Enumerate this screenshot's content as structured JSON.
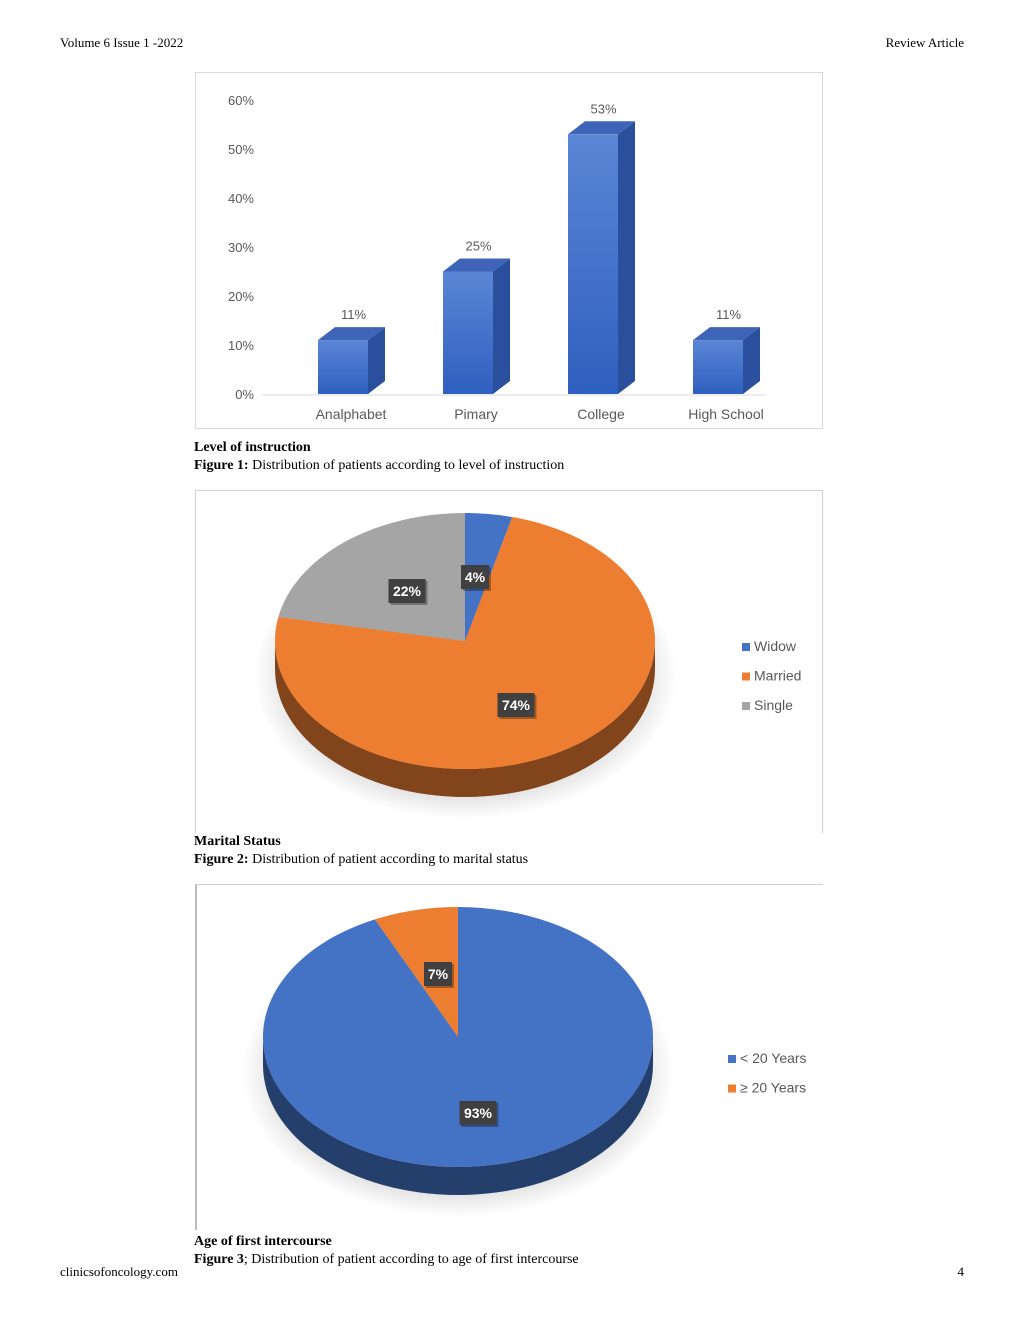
{
  "header": {
    "left": "Volume 6 Issue 1 -2022",
    "right": "Review Article"
  },
  "footer": {
    "left": "clinicsofoncology.com",
    "page": "4"
  },
  "figures": [
    {
      "title": "Level of instruction",
      "label": "Figure 1:",
      "caption": " Distribution of patients according to level of instruction"
    },
    {
      "title": "Marital Status",
      "label": "Figure 2:",
      "caption": " Distribution of patient according to marital status"
    },
    {
      "title": "Age of first intercourse",
      "label": "Figure 3",
      "caption": "; Distribution of patient according to age of first intercourse"
    }
  ],
  "chart_data": [
    {
      "type": "bar",
      "categories": [
        "Analphabet",
        "Pimary",
        "College",
        "High School"
      ],
      "values": [
        11,
        25,
        53,
        11
      ],
      "data_labels": [
        "11%",
        "25%",
        "53%",
        "11%"
      ],
      "yticks": [
        "0%",
        "10%",
        "20%",
        "30%",
        "40%",
        "50%",
        "60%"
      ],
      "ylim": [
        0,
        60
      ],
      "grid": false,
      "color": "#4472c4"
    },
    {
      "type": "pie",
      "labels": [
        "Widow",
        "Married",
        "Single"
      ],
      "values": [
        4,
        74,
        22
      ],
      "data_labels": [
        "4%",
        "74%",
        "22%"
      ],
      "colors": [
        "#4472c4",
        "#ed7d31",
        "#a5a5a5"
      ],
      "legend": "right"
    },
    {
      "type": "pie",
      "labels": [
        "< 20 Years",
        "≥ 20 Years"
      ],
      "values": [
        93,
        7
      ],
      "data_labels": [
        "93%",
        "7%"
      ],
      "colors": [
        "#4472c4",
        "#ed7d31"
      ],
      "legend": "right"
    }
  ]
}
